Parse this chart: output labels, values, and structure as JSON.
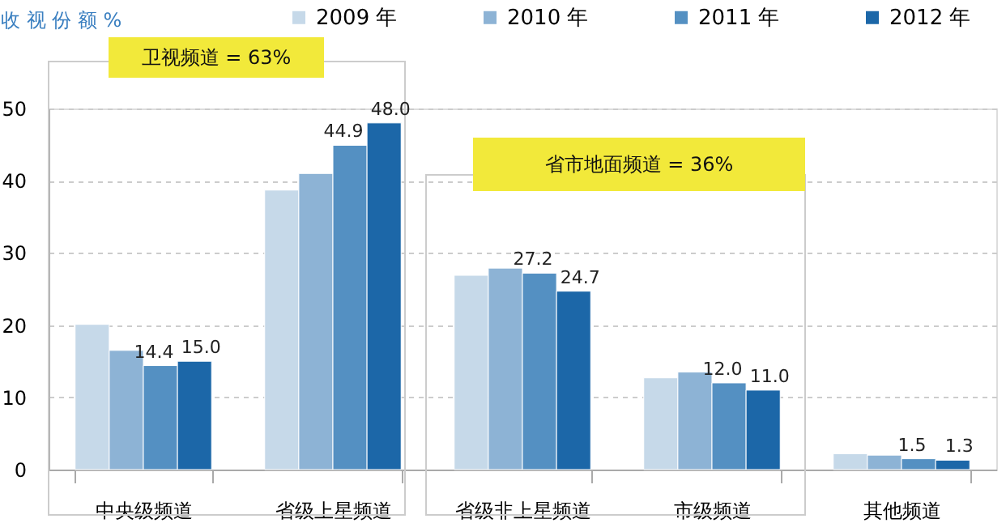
{
  "chart_data": {
    "type": "bar",
    "ylabel": "收 视 份 额 %",
    "categories": [
      "中央级频道",
      "省级上星频道",
      "省级非上星频道",
      "市级频道",
      "其他频道"
    ],
    "series": [
      {
        "name": "2009 年",
        "color": "#c6d9e9",
        "values": [
          20.1,
          38.7,
          26.9,
          12.7,
          2.2
        ]
      },
      {
        "name": "2010 年",
        "color": "#8db3d5",
        "values": [
          16.5,
          41.0,
          27.9,
          13.5,
          2.0
        ]
      },
      {
        "name": "2011 年",
        "color": "#5490c2",
        "values": [
          14.4,
          44.9,
          27.2,
          12.0,
          1.5
        ],
        "value_labels": [
          "14.4",
          "44.9",
          "27.2",
          "12.0",
          "1.5"
        ]
      },
      {
        "name": "2012 年",
        "color": "#1c67a8",
        "values": [
          15.0,
          48.0,
          24.7,
          11.0,
          1.3
        ],
        "value_labels": [
          "15.0",
          "48.0",
          "24.7",
          "11.0",
          "1.3"
        ]
      }
    ],
    "ylim": [
      0,
      50
    ],
    "yticks": [
      0,
      10,
      20,
      30,
      40,
      50
    ],
    "grid": "y",
    "legend": "top",
    "annotations": [
      "卫视频道 = 63%",
      "省市地面频道 = 36%"
    ]
  }
}
